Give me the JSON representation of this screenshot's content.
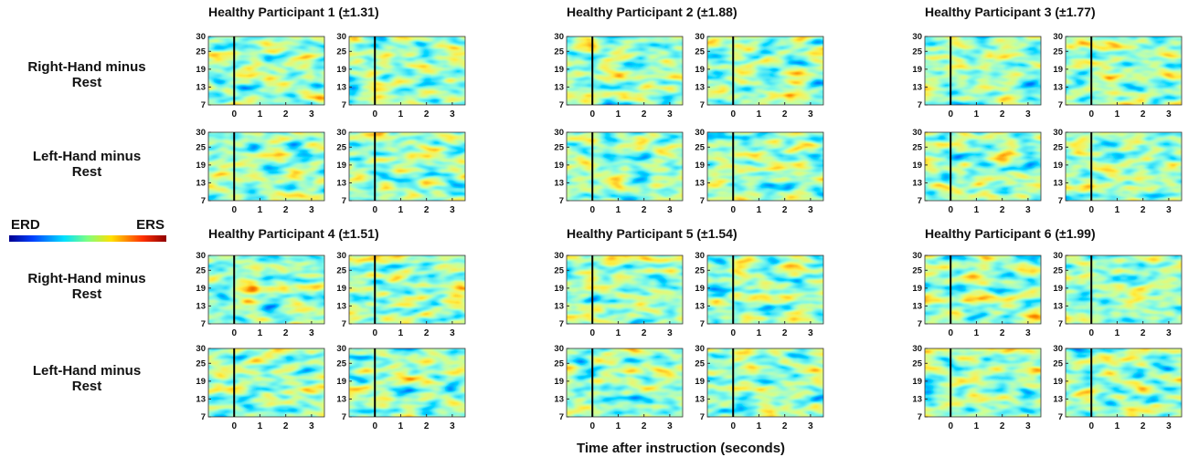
{
  "participants": [
    {
      "title": "Healthy Participant 1 (±1.31)"
    },
    {
      "title": "Healthy Participant 2 (±1.88)"
    },
    {
      "title": "Healthy Participant 3 (±1.77)"
    },
    {
      "title": "Healthy Participant 4 (±1.51)"
    },
    {
      "title": "Healthy Participant 5 (±1.54)"
    },
    {
      "title": "Healthy Participant 6 (±1.99)"
    }
  ],
  "row_labels": [
    "Right-Hand minus Rest",
    "Left-Hand minus Rest"
  ],
  "colorbar": {
    "low": "ERD",
    "high": "ERS"
  },
  "axes": {
    "xlim": [
      -1,
      3.5
    ],
    "ylim": [
      7,
      30
    ],
    "xticks": [
      0,
      1,
      2,
      3
    ],
    "yticks": [
      7,
      13,
      19,
      25,
      30
    ],
    "xlabel": "Time after instruction (seconds)"
  }
}
